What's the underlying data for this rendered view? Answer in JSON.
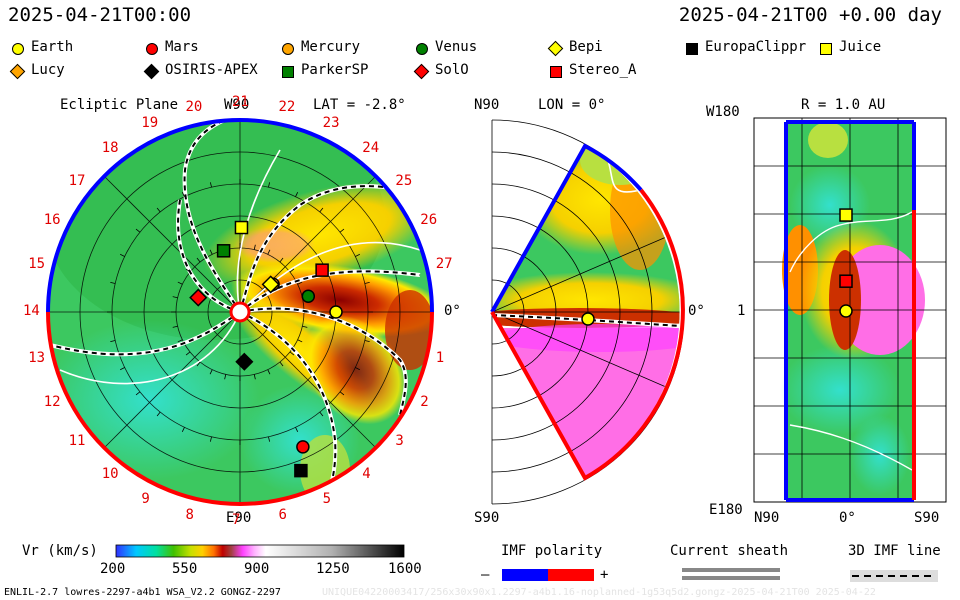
{
  "header": {
    "left_time": "2025-04-21T00:00",
    "right_time": "2025-04-21T00 +0.00 day"
  },
  "legend": [
    {
      "name": "Earth",
      "shape": "circle",
      "color": "#ffff00"
    },
    {
      "name": "Mars",
      "shape": "circle",
      "color": "#ff0000"
    },
    {
      "name": "Mercury",
      "shape": "circle",
      "color": "#ffa500"
    },
    {
      "name": "Venus",
      "shape": "circle",
      "color": "#008000"
    },
    {
      "name": "Bepi",
      "shape": "diamond",
      "color": "#ffff00"
    },
    {
      "name": "EuropaClippr",
      "shape": "square",
      "color": "#000000"
    },
    {
      "name": "Juice",
      "shape": "square",
      "color": "#ffff00"
    },
    {
      "name": "Lucy",
      "shape": "diamond",
      "color": "#ffa500"
    },
    {
      "name": "OSIRIS-APEX",
      "shape": "diamond",
      "color": "#000000"
    },
    {
      "name": "ParkerSP",
      "shape": "square",
      "color": "#008000"
    },
    {
      "name": "SolO",
      "shape": "diamond",
      "color": "#ff0000"
    },
    {
      "name": "Stereo_A",
      "shape": "square",
      "color": "#ff0000"
    }
  ],
  "chart_data": [
    {
      "type": "heatmap",
      "panel": "ecliptic",
      "title": "Ecliptic Plane",
      "subtitle": "LAT = -2.8°",
      "top_label": "W90",
      "bottom_label": "E90",
      "right_label": "0°",
      "carrington_labels": [
        "1",
        "2",
        "3",
        "4",
        "5",
        "6",
        "7",
        "8",
        "9",
        "10",
        "11",
        "12",
        "13",
        "14",
        "15",
        "16",
        "17",
        "18",
        "19",
        "20",
        "21",
        "22",
        "23",
        "24",
        "25",
        "26",
        "27"
      ],
      "bodies": [
        {
          "name": "Earth",
          "r_au": 1.0,
          "lon_deg": 0
        },
        {
          "name": "Juice",
          "r_au": 0.88,
          "lon_deg": 89
        },
        {
          "name": "ParkerSP",
          "r_au": 0.66,
          "lon_deg": 105
        },
        {
          "name": "Mercury",
          "r_au": 0.45,
          "lon_deg": 40
        },
        {
          "name": "Bepi",
          "r_au": 0.43,
          "lon_deg": 42
        },
        {
          "name": "Stereo_A",
          "r_au": 0.96,
          "lon_deg": 27
        },
        {
          "name": "Venus",
          "r_au": 0.73,
          "lon_deg": 13
        },
        {
          "name": "SolO",
          "r_au": 0.46,
          "lon_deg": 161
        },
        {
          "name": "OSIRIS-APEX",
          "r_au": 0.52,
          "lon_deg": 275
        },
        {
          "name": "Mars",
          "r_au": 1.55,
          "lon_deg": 295
        },
        {
          "name": "EuropaClippr",
          "r_au": 1.77,
          "lon_deg": 291
        }
      ]
    },
    {
      "type": "heatmap",
      "panel": "meridional",
      "title": "N90",
      "subtitle": "LON = 0°",
      "bottom_label": "S90",
      "right_label": "0°",
      "bodies": [
        {
          "name": "Earth",
          "r_au": 1.0,
          "lat_deg": 0
        }
      ]
    },
    {
      "type": "heatmap",
      "panel": "radial",
      "title": "R = 1.0 AU",
      "left_top_label": "W180",
      "left_mid_label": "1",
      "left_bottom_label": "E180",
      "x_labels": [
        "N90",
        "0°",
        "S90"
      ],
      "bodies": [
        {
          "name": "Juice",
          "lat_deg": 0,
          "lon_deg": 89
        },
        {
          "name": "Stereo_A",
          "lat_deg": 0,
          "lon_deg": 27
        },
        {
          "name": "Earth",
          "lat_deg": 0,
          "lon_deg": 0
        }
      ]
    }
  ],
  "colorbar": {
    "label": "Vr (km/s)",
    "ticks": [
      "200",
      "550",
      "900",
      "1250",
      "1600"
    ],
    "range": [
      200,
      1600
    ]
  },
  "imf": {
    "title": "IMF polarity",
    "minus": "–",
    "plus": "+",
    "neg_color": "#0000ff",
    "pos_color": "#ff0000"
  },
  "sheath": {
    "title": "Current sheath"
  },
  "imf3d": {
    "title": "3D IMF line"
  },
  "footer": {
    "left": "ENLIL-2.7 lowres-2297-a4b1 WSA_V2.2 GONGZ-2297",
    "right": "UNIQUE04220003417/256x30x90x1.2297-a4b1.16-noplanned-1g53q5d2.gongz-2025-04-21T00 2025-04-22"
  }
}
